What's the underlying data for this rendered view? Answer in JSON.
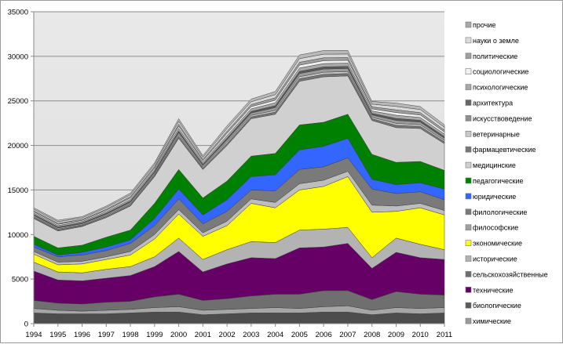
{
  "chart_data": {
    "type": "area",
    "stacked": true,
    "title": "",
    "xlabel": "",
    "ylabel": "",
    "ylim": [
      0,
      35000
    ],
    "yticks": [
      0,
      5000,
      10000,
      15000,
      20000,
      25000,
      30000,
      35000
    ],
    "grid": true,
    "legend_position": "right",
    "x": [
      "1994",
      "1995",
      "1996",
      "1997",
      "1998",
      "1999",
      "2000",
      "2001",
      "2002",
      "2003",
      "2004",
      "2005",
      "2006",
      "2007",
      "2008",
      "2009",
      "2010",
      "2011"
    ],
    "series": [
      {
        "name": "химические",
        "color": "#4d4d4d",
        "values": [
          1200,
          1100,
          1100,
          1100,
          1200,
          1300,
          1300,
          1000,
          1100,
          1200,
          1200,
          1200,
          1300,
          1300,
          1000,
          1200,
          1100,
          1200
        ]
      },
      {
        "name": "биологические",
        "color": "#a6a6a6",
        "values": [
          500,
          400,
          300,
          400,
          400,
          500,
          600,
          500,
          500,
          500,
          600,
          500,
          600,
          700,
          500,
          600,
          600,
          600
        ]
      },
      {
        "name": "сельскохозяйственные",
        "color": "#6f6f6f",
        "values": [
          900,
          800,
          800,
          900,
          900,
          1200,
          1400,
          1100,
          1200,
          1400,
          1500,
          1600,
          1800,
          1700,
          1200,
          1800,
          1600,
          1400
        ]
      },
      {
        "name": "технические",
        "color": "#660066",
        "values": [
          3300,
          2600,
          2600,
          2700,
          2900,
          3400,
          4800,
          3200,
          3900,
          4300,
          4000,
          5200,
          4900,
          5300,
          3500,
          4400,
          4100,
          4000
        ]
      },
      {
        "name": "исторические",
        "color": "#b3b3b3",
        "values": [
          1000,
          900,
          900,
          1000,
          1000,
          1100,
          1500,
          1400,
          1600,
          1800,
          1800,
          2000,
          2000,
          1800,
          1200,
          1600,
          1500,
          1100
        ]
      },
      {
        "name": "экономические",
        "color": "#ffff00",
        "values": [
          900,
          800,
          1000,
          1100,
          1300,
          2000,
          2700,
          2600,
          2700,
          4300,
          3900,
          4500,
          4800,
          5700,
          5100,
          3000,
          4100,
          3900
        ]
      },
      {
        "name": "философские",
        "color": "#bdbdbd",
        "values": [
          300,
          300,
          300,
          300,
          400,
          500,
          500,
          400,
          500,
          500,
          600,
          700,
          700,
          600,
          800,
          600,
          500,
          500
        ]
      },
      {
        "name": "филологические",
        "color": "#7a7a7a",
        "values": [
          500,
          600,
          700,
          700,
          900,
          1000,
          1200,
          1000,
          1100,
          1000,
          1300,
          1600,
          1500,
          1500,
          1800,
          1400,
          1300,
          1200
        ]
      },
      {
        "name": "юридические",
        "color": "#3366ff",
        "values": [
          300,
          200,
          300,
          400,
          400,
          800,
          1100,
          1000,
          1300,
          1500,
          1800,
          2200,
          2300,
          2200,
          1100,
          1000,
          1000,
          1200
        ]
      },
      {
        "name": "педагогические",
        "color": "#008000",
        "values": [
          900,
          800,
          800,
          1100,
          1100,
          1700,
          2200,
          1900,
          2100,
          2300,
          2400,
          2800,
          2700,
          2700,
          2800,
          2500,
          2400,
          2100
        ]
      },
      {
        "name": "медицинские",
        "color": "#d0d0d0",
        "values": [
          2000,
          1900,
          2100,
          2200,
          2700,
          3000,
          3500,
          3200,
          4000,
          4200,
          4400,
          4900,
          5100,
          4300,
          3800,
          3900,
          3700,
          3000
        ]
      },
      {
        "name": "фармацевтические",
        "color": "#777777",
        "values": [
          110,
          110,
          100,
          120,
          140,
          150,
          200,
          150,
          200,
          200,
          240,
          280,
          280,
          270,
          200,
          260,
          230,
          200
        ]
      },
      {
        "name": "ветеринарные",
        "color": "#c8c8c8",
        "values": [
          90,
          90,
          80,
          100,
          110,
          120,
          170,
          120,
          170,
          170,
          200,
          230,
          230,
          220,
          160,
          210,
          190,
          160
        ]
      },
      {
        "name": "искусствоведение",
        "color": "#9a9a9a",
        "values": [
          150,
          150,
          140,
          160,
          180,
          190,
          270,
          190,
          270,
          270,
          310,
          360,
          360,
          350,
          260,
          340,
          300,
          260
        ]
      },
      {
        "name": "архитектура",
        "color": "#5a5a5a",
        "values": [
          100,
          100,
          90,
          110,
          120,
          130,
          180,
          130,
          180,
          180,
          210,
          240,
          240,
          230,
          170,
          220,
          200,
          170
        ]
      },
      {
        "name": "психологические",
        "color": "#a8a8a8",
        "values": [
          160,
          160,
          150,
          170,
          190,
          200,
          290,
          200,
          290,
          290,
          330,
          380,
          380,
          370,
          280,
          360,
          320,
          280
        ]
      },
      {
        "name": "социологические",
        "color": "#f0f0f0",
        "values": [
          130,
          130,
          120,
          140,
          160,
          170,
          240,
          170,
          240,
          240,
          280,
          320,
          320,
          310,
          230,
          300,
          270,
          230
        ]
      },
      {
        "name": "политические",
        "color": "#a0a0a0",
        "values": [
          130,
          130,
          120,
          140,
          160,
          170,
          240,
          170,
          240,
          240,
          280,
          320,
          320,
          310,
          230,
          300,
          270,
          230
        ]
      },
      {
        "name": "науки о земле",
        "color": "#d8d8d8",
        "values": [
          170,
          170,
          160,
          180,
          200,
          220,
          310,
          220,
          310,
          310,
          350,
          410,
          410,
          400,
          300,
          390,
          350,
          300
        ]
      },
      {
        "name": "прочие",
        "color": "#b8b8b8",
        "values": [
          160,
          160,
          150,
          170,
          190,
          200,
          300,
          210,
          300,
          300,
          350,
          410,
          410,
          400,
          300,
          370,
          330,
          290
        ]
      }
    ],
    "legend_order": [
      "прочие",
      "науки о земле",
      "политические",
      "социологические",
      "психологические",
      "архитектура",
      "искусствоведение",
      "ветеринарные",
      "фармацевтические",
      "медицинские",
      "педагогические",
      "юридические",
      "филологические",
      "философские",
      "экономические",
      "исторические",
      "сельскохозяйственные",
      "технические",
      "биологические",
      "химические"
    ],
    "legend_colors": {
      "прочие": "#a9a9a9",
      "науки о земле": "#dcdcdc",
      "политические": "#a0a0a0",
      "социологические": "#f4f4f4",
      "психологические": "#a8a8a8",
      "архитектура": "#666666",
      "искусствоведение": "#8f8f8f",
      "ветеринарные": "#c8c8c8",
      "фармацевтические": "#777777",
      "медицинские": "#d0d0d0",
      "педагогические": "#008000",
      "юридические": "#3366ff",
      "филологические": "#7a7a7a",
      "философские": "#a0a0a0",
      "экономические": "#ffff00",
      "исторические": "#b3b3b3",
      "сельскохозяйственные": "#6f6f6f",
      "технические": "#660066",
      "биологические": "#5a5a5a",
      "химические": "#999999"
    }
  }
}
